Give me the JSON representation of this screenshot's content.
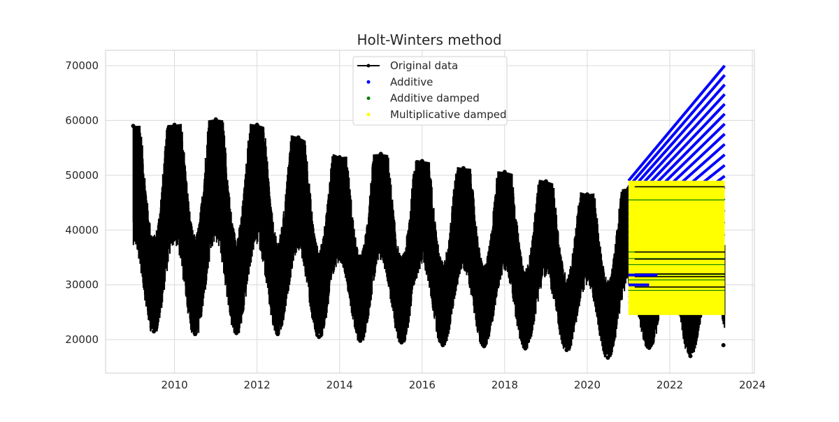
{
  "chart_data": {
    "type": "line",
    "title": "Holt-Winters method",
    "xlabel": "",
    "ylabel": "",
    "xlim": [
      2008.33,
      2024.05
    ],
    "ylim": [
      13900,
      72800
    ],
    "x_ticks": [
      2010,
      2012,
      2014,
      2016,
      2018,
      2020,
      2022,
      2024
    ],
    "y_ticks": [
      20000,
      30000,
      40000,
      50000,
      60000,
      70000
    ],
    "x_tick_labels": [
      "2010",
      "2012",
      "2014",
      "2016",
      "2018",
      "2020",
      "2022",
      "2024"
    ],
    "y_tick_labels": [
      "20000",
      "30000",
      "40000",
      "50000",
      "60000",
      "70000"
    ],
    "grid": true,
    "legend_position": "upper center",
    "legend": [
      {
        "label": "Original data",
        "marker": "line-dot",
        "color": "#000000"
      },
      {
        "label": "Additive",
        "marker": "dot",
        "color": "#0000ff"
      },
      {
        "label": "Additive damped",
        "marker": "dot",
        "color": "#008000"
      },
      {
        "label": "Multiplicative damped",
        "marker": "dot",
        "color": "#ffff00"
      }
    ],
    "series": [
      {
        "name": "Original data",
        "color": "#000000",
        "x_range": [
          2009.0,
          2023.33
        ],
        "seasonal_peaks": [
          {
            "x": 2009.0,
            "y": 59000
          },
          {
            "x": 2010.0,
            "y": 59200
          },
          {
            "x": 2011.0,
            "y": 60200
          },
          {
            "x": 2012.0,
            "y": 59200
          },
          {
            "x": 2013.0,
            "y": 56900
          },
          {
            "x": 2014.0,
            "y": 53300
          },
          {
            "x": 2015.0,
            "y": 53900
          },
          {
            "x": 2016.0,
            "y": 52600
          },
          {
            "x": 2017.0,
            "y": 51300
          },
          {
            "x": 2018.0,
            "y": 50600
          },
          {
            "x": 2019.0,
            "y": 48900
          },
          {
            "x": 2020.0,
            "y": 46500
          },
          {
            "x": 2021.0,
            "y": 47600
          },
          {
            "x": 2022.0,
            "y": 47500
          },
          {
            "x": 2023.0,
            "y": 47000
          }
        ],
        "seasonal_troughs": [
          {
            "x": 2009.5,
            "y": 21500
          },
          {
            "x": 2010.5,
            "y": 21000
          },
          {
            "x": 2011.5,
            "y": 21200
          },
          {
            "x": 2012.5,
            "y": 21000
          },
          {
            "x": 2013.5,
            "y": 20500
          },
          {
            "x": 2014.5,
            "y": 19800
          },
          {
            "x": 2015.5,
            "y": 19500
          },
          {
            "x": 2016.5,
            "y": 19000
          },
          {
            "x": 2017.5,
            "y": 18800
          },
          {
            "x": 2018.5,
            "y": 18400
          },
          {
            "x": 2019.5,
            "y": 18100
          },
          {
            "x": 2020.5,
            "y": 16700
          },
          {
            "x": 2021.5,
            "y": 18500
          },
          {
            "x": 2022.5,
            "y": 17000
          },
          {
            "x": 2023.3,
            "y": 19000
          }
        ]
      },
      {
        "name": "Additive",
        "color": "#0000ff",
        "x_range": [
          2021.0,
          2023.33
        ],
        "y_start_range": [
          25500,
          49000
        ],
        "y_end_range": [
          25000,
          70000
        ]
      },
      {
        "name": "Additive damped",
        "color": "#008000",
        "x_range": [
          2021.0,
          2023.33
        ],
        "y_range": [
          24500,
          49000
        ]
      },
      {
        "name": "Multiplicative damped",
        "color": "#ffff00",
        "x_range": [
          2021.0,
          2023.33
        ],
        "y_range": [
          24500,
          49000
        ]
      }
    ]
  }
}
